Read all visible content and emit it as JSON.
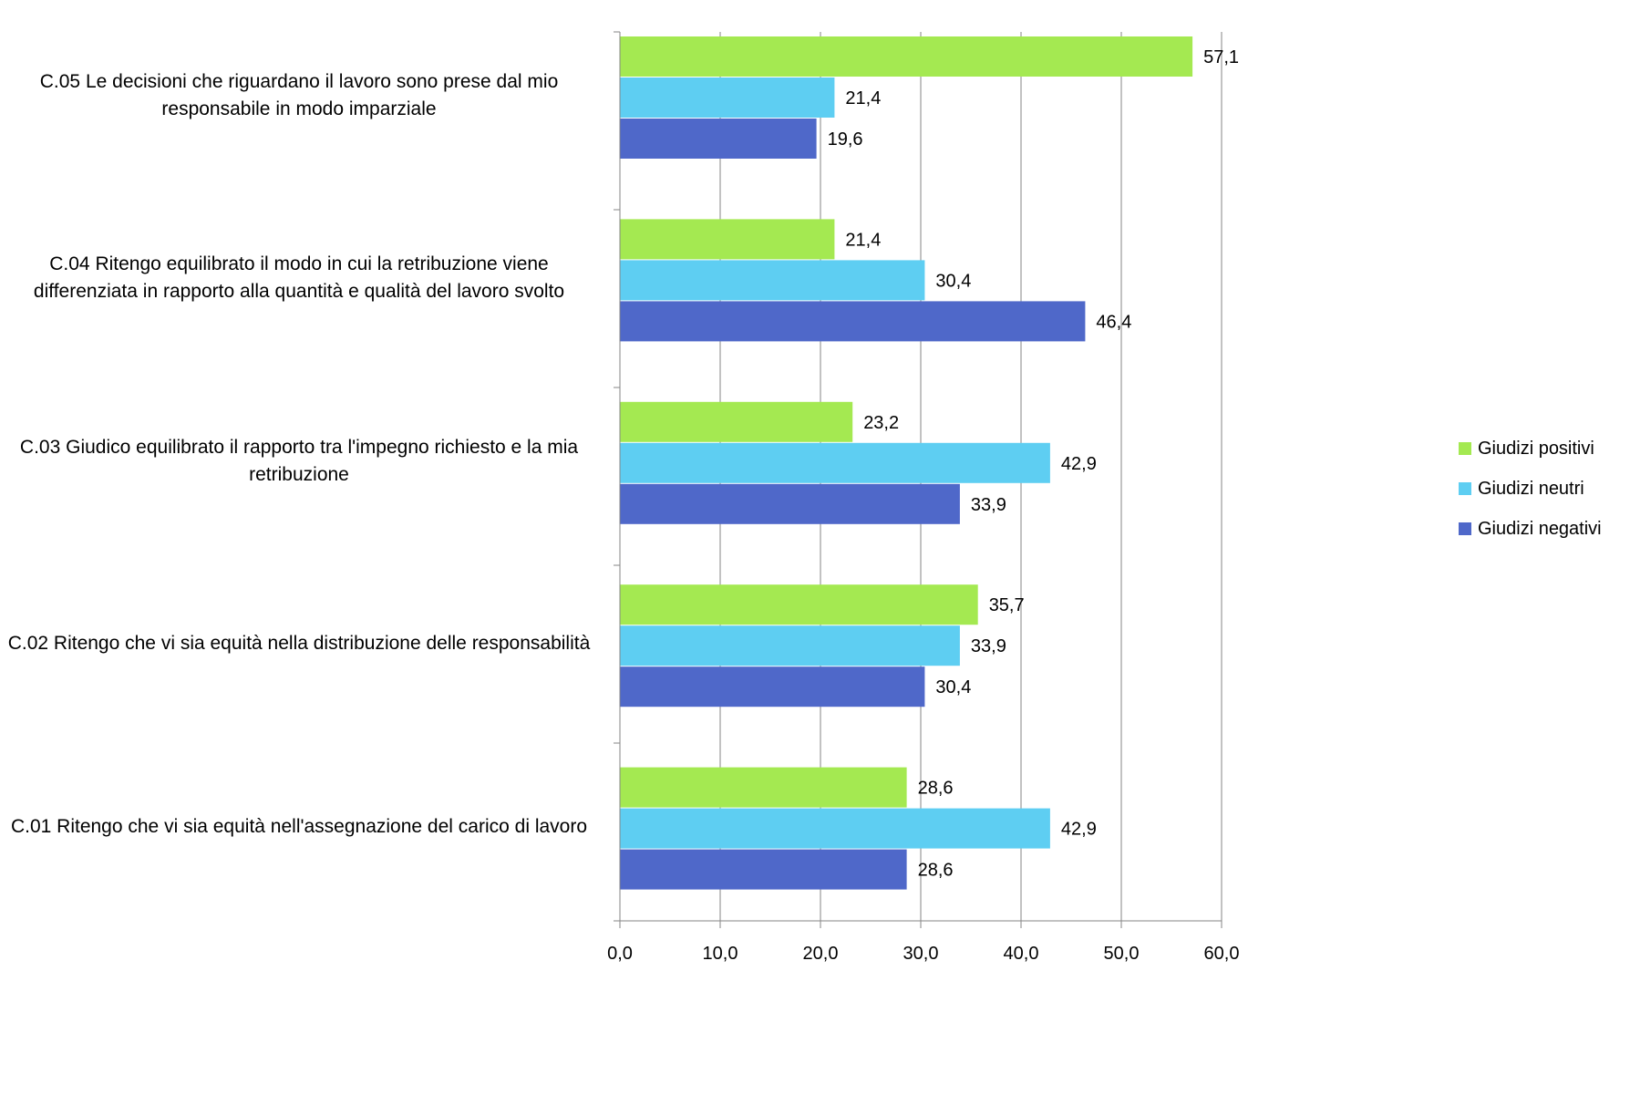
{
  "chart_data": {
    "type": "bar",
    "orientation": "horizontal",
    "categories": [
      "C.05 Le decisioni che riguardano il lavoro sono prese dal mio\nresponsabile in modo imparziale",
      "C.04 Ritengo equilibrato il modo in cui la retribuzione viene\ndifferenziata in rapporto alla quantità e qualità del lavoro svolto",
      "C.03 Giudico equilibrato il rapporto tra l'impegno richiesto e la mia\nretribuzione",
      "C.02 Ritengo che vi sia equità nella distribuzione delle responsabilità",
      "C.01 Ritengo che vi sia equità nell'assegnazione del carico di lavoro"
    ],
    "series": [
      {
        "name": "Giudizi positivi",
        "color": "#a4e951",
        "values": [
          57.1,
          21.4,
          23.2,
          35.7,
          28.6
        ],
        "labels": [
          "57,1",
          "21,4",
          "23,2",
          "35,7",
          "28,6"
        ]
      },
      {
        "name": "Giudizi neutri",
        "color": "#5ecef2",
        "values": [
          21.4,
          30.4,
          42.9,
          33.9,
          42.9
        ],
        "labels": [
          "21,4",
          "30,4",
          "42,9",
          "33,9",
          "42,9"
        ]
      },
      {
        "name": "Giudizi negativi",
        "color": "#4f68c9",
        "values": [
          19.6,
          46.4,
          33.9,
          30.4,
          28.6
        ],
        "labels": [
          "19,6",
          "46,4",
          "33,9",
          "30,4",
          "28,6"
        ]
      }
    ],
    "xlim": [
      0,
      60
    ],
    "xticks": [
      0,
      10,
      20,
      30,
      40,
      50,
      60
    ],
    "xtick_labels": [
      "0,0",
      "10,0",
      "20,0",
      "30,0",
      "40,0",
      "50,0",
      "60,0"
    ],
    "grid": true,
    "legend_position": "right",
    "title": "",
    "xlabel": "",
    "ylabel": ""
  }
}
